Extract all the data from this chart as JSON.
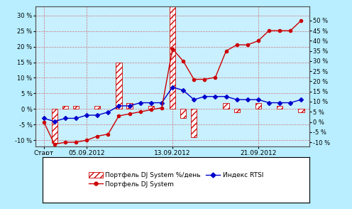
{
  "bg_color": "#b8eeff",
  "plot_bg_color": "#c8f0ff",
  "x_labels": [
    "Старт",
    "05.09.2012",
    "13.09.2012",
    "21.09.2012"
  ],
  "x_positions": [
    0,
    4,
    12,
    20
  ],
  "yleft_min": -12,
  "yleft_max": 33,
  "yleft_ticks": [
    -10,
    -5,
    0,
    5,
    10,
    15,
    20,
    25,
    30
  ],
  "yright_min": -12,
  "yright_max": 57,
  "yright_ticks": [
    -10,
    -5,
    0,
    5,
    10,
    15,
    20,
    25,
    30,
    35,
    40,
    45,
    50
  ],
  "portfolio_line_color": "#cc0000",
  "rtsi_line_color": "#0000cc",
  "bar_color": "#ffffff",
  "bar_edge_color": "#cc0000",
  "bar_hatch": "////",
  "grid_color": "#cc4444",
  "grid_style": "--",
  "legend_bg": "#ffffff",
  "legend_edge": "#000000",
  "bar_x": [
    0,
    1,
    2,
    3,
    4,
    5,
    6,
    7,
    8,
    9,
    10,
    11,
    12,
    13,
    14,
    15,
    16,
    17,
    18,
    19,
    20,
    21,
    22,
    23,
    24
  ],
  "bar_heights": [
    0,
    -11,
    1,
    1,
    0,
    1,
    0,
    15,
    2,
    0,
    1,
    0,
    35,
    -3,
    -9,
    0,
    0,
    2,
    -1,
    0,
    2,
    0,
    1,
    0,
    -1
  ],
  "portfolio_x": [
    0,
    1,
    2,
    3,
    4,
    5,
    6,
    7,
    8,
    9,
    10,
    11,
    12,
    13,
    14,
    15,
    16,
    17,
    18,
    19,
    20,
    21,
    22,
    23,
    24
  ],
  "portfolio_y": [
    0,
    -11,
    -10,
    -10,
    -9,
    -7,
    -6,
    3,
    4,
    5,
    6,
    7,
    36,
    30,
    21,
    21,
    22,
    35,
    38,
    38,
    40,
    45,
    45,
    45,
    50
  ],
  "rtsi_x": [
    0,
    1,
    2,
    3,
    4,
    5,
    6,
    7,
    8,
    9,
    10,
    11,
    12,
    13,
    14,
    15,
    16,
    17,
    18,
    19,
    20,
    21,
    22,
    23,
    24
  ],
  "rtsi_y": [
    -3,
    -4,
    -3,
    -3,
    -2,
    -2,
    -1,
    1,
    1,
    2,
    2,
    2,
    7,
    6,
    3,
    4,
    4,
    4,
    3,
    3,
    3,
    2,
    2,
    2,
    3
  ],
  "legend_labels": [
    "Портфель DJ System %/день",
    "Портфель DJ System",
    "Индекс RTSI"
  ]
}
